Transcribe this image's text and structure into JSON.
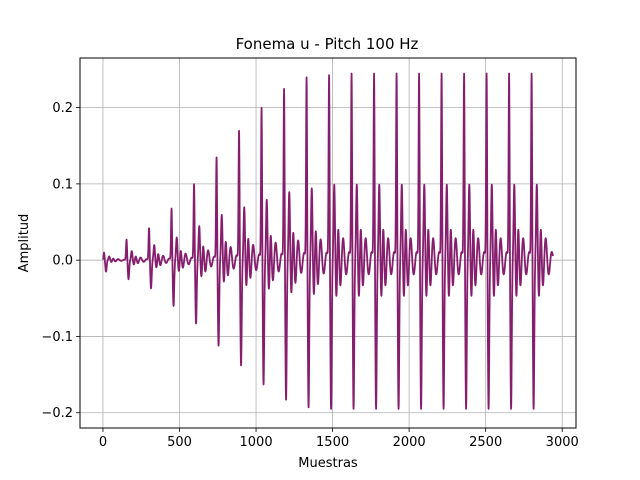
{
  "chart_data": {
    "type": "line",
    "title": "Fonema u - Pitch 100 Hz",
    "xlabel": "Muestras",
    "ylabel": "Amplitud",
    "xlim": [
      -150,
      3090
    ],
    "ylim": [
      -0.22,
      0.265
    ],
    "xticks": [
      0,
      500,
      1000,
      1500,
      2000,
      2500,
      3000
    ],
    "xtick_labels": [
      "0",
      "500",
      "1000",
      "1500",
      "2000",
      "2500",
      "3000"
    ],
    "yticks": [
      -0.2,
      -0.1,
      0.0,
      0.1,
      0.2
    ],
    "ytick_labels": [
      "−0.2",
      "−0.1",
      "0.0",
      "0.1",
      "0.2"
    ],
    "grid": true,
    "series_color": "#861e6e",
    "series": [
      {
        "period_samples": 147,
        "pulse_peak_positions": [
          7,
          154,
          301,
          448,
          595,
          742,
          889,
          1036,
          1183,
          1330,
          1477,
          1624,
          1771,
          1918,
          2065,
          2212,
          2359,
          2506,
          2653,
          2800
        ],
        "pulse_peak_values": [
          0.01,
          0.027,
          0.042,
          0.068,
          0.1,
          0.135,
          0.17,
          0.2,
          0.225,
          0.24,
          0.243,
          0.245,
          0.245,
          0.245,
          0.245,
          0.245,
          0.245,
          0.245,
          0.245,
          0.245
        ],
        "pulse_trough_values": [
          -0.015,
          -0.025,
          -0.037,
          -0.06,
          -0.083,
          -0.112,
          -0.138,
          -0.163,
          -0.183,
          -0.193,
          -0.195,
          -0.195,
          -0.195,
          -0.195,
          -0.195,
          -0.195,
          -0.195,
          -0.195,
          -0.195,
          -0.195
        ],
        "secondary_peak_values": [
          0.005,
          0.012,
          0.02,
          0.03,
          0.045,
          0.06,
          0.07,
          0.08,
          0.09,
          0.095,
          0.1,
          0.1,
          0.1,
          0.1,
          0.1,
          0.1,
          0.1,
          0.1,
          0.1,
          0.1
        ],
        "x_end": 2940
      }
    ]
  }
}
